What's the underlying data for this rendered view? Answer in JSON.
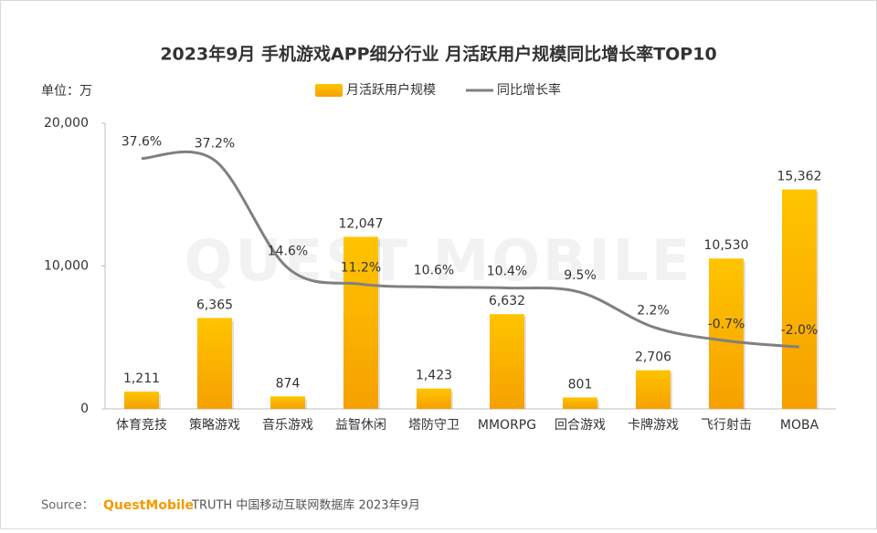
{
  "chart_data": {
    "type": "bar-line",
    "title": "2023年9月 手机游戏APP细分行业 月活跃用户规模同比增长率TOP10",
    "unit_label": "单位：万",
    "watermark": "QUEST MOBILE",
    "categories": [
      "体育竞技",
      "策略游戏",
      "音乐游戏",
      "益智休闲",
      "塔防守卫",
      "MMORPG",
      "回合游戏",
      "卡牌游戏",
      "飞行射击",
      "MOBA"
    ],
    "series": [
      {
        "name": "月活跃用户规模",
        "color": "#f7b500",
        "values": [
          1211,
          6365,
          874,
          12047,
          1423,
          6632,
          801,
          2706,
          10530,
          15362
        ],
        "value_labels": [
          "1,211",
          "6,365",
          "874",
          "12,047",
          "1,423",
          "6,632",
          "801",
          "2,706",
          "10,530",
          "15,362"
        ]
      },
      {
        "name": "同比增长率",
        "color": "#808080",
        "axis": "y2",
        "values": [
          37.6,
          37.2,
          14.6,
          11.2,
          10.6,
          10.4,
          9.5,
          2.2,
          -0.7,
          -2.0
        ],
        "value_labels": [
          "37.6%",
          "37.2%",
          "14.6%",
          "11.2%",
          "10.6%",
          "10.4%",
          "9.5%",
          "2.2%",
          "-0.7%",
          "-2.0%"
        ]
      }
    ],
    "ylim": [
      0,
      20000
    ],
    "yticks": [
      0,
      {
        "value": 10000,
        "label": "10,000"
      },
      {
        "value": 20000,
        "label": "20,000"
      }
    ],
    "y2lim": [
      -15,
      45
    ],
    "source": {
      "prefix": "Source：",
      "brand": "QuestMobile",
      "text": "TRUTH 中国移动互联网数据库 2023年9月"
    }
  }
}
